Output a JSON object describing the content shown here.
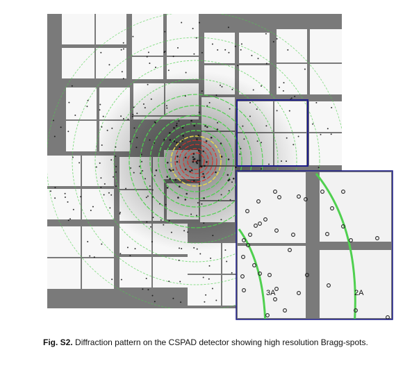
{
  "caption": {
    "label": "Fig. S2.",
    "text": " Diffraction pattern on the CSPAD detector showing high resolution Bragg-spots."
  },
  "inset": {
    "ring_labels": [
      "3A",
      "2A"
    ]
  },
  "colors": {
    "detector_frame": "#7a7a7a",
    "panel": "#f7f7f7",
    "inset_border": "#1c1c8a",
    "ring_red": "#e0302a",
    "ring_yellow": "#e8d84a",
    "ring_green": "#4fd04f",
    "spot": "#111111"
  }
}
